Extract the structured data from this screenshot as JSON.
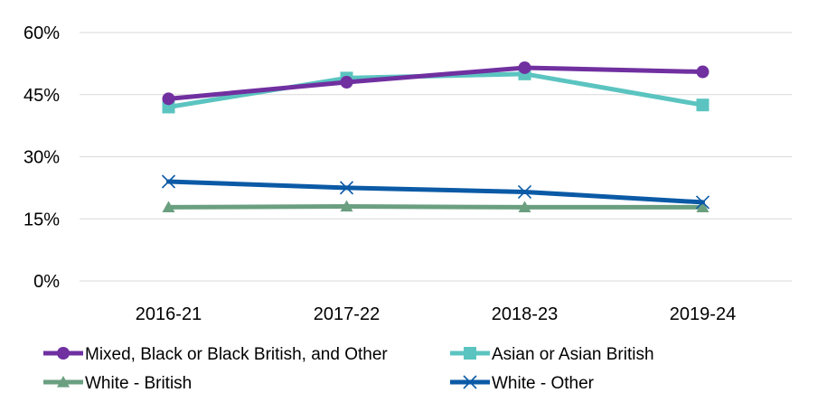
{
  "chart_data": {
    "type": "line",
    "categories": [
      "2016-21",
      "2017-22",
      "2018-23",
      "2019-24"
    ],
    "yticks": [
      "0%",
      "15%",
      "30%",
      "45%",
      "60%"
    ],
    "ylim": [
      0,
      60
    ],
    "grid": true,
    "legend_position": "bottom",
    "series": [
      {
        "name": "Mixed, Black or Black British, and Other",
        "values": [
          44,
          48,
          51.5,
          50.5
        ],
        "color": "#7030A0",
        "marker": "circle"
      },
      {
        "name": "Asian or Asian British",
        "values": [
          42,
          49,
          50,
          42.5
        ],
        "color": "#5BC4C0",
        "marker": "square"
      },
      {
        "name": "White - British",
        "values": [
          17.8,
          18,
          17.8,
          17.8
        ],
        "color": "#6A9F80",
        "marker": "triangle"
      },
      {
        "name": "White - Other",
        "values": [
          24,
          22.5,
          21.5,
          19
        ],
        "color": "#0B5AA6",
        "marker": "x"
      }
    ]
  }
}
